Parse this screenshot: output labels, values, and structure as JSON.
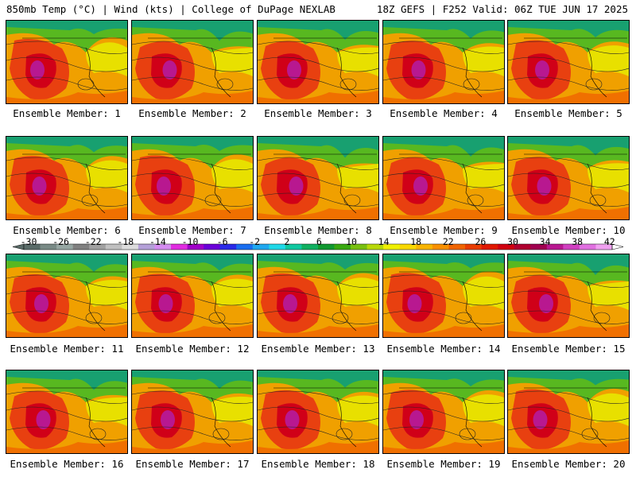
{
  "header": {
    "left": "850mb Temp (°C) | Wind (kts) | College of DuPage NEXLAB",
    "right": "18Z GEFS | F252 Valid: 06Z TUE JUN 17 2025"
  },
  "panels": [
    {
      "label": "Ensemble Member: 1"
    },
    {
      "label": "Ensemble Member: 2"
    },
    {
      "label": "Ensemble Member: 3"
    },
    {
      "label": "Ensemble Member: 4"
    },
    {
      "label": "Ensemble Member: 5"
    },
    {
      "label": "Ensemble Member: 6"
    },
    {
      "label": "Ensemble Member: 7"
    },
    {
      "label": "Ensemble Member: 8"
    },
    {
      "label": "Ensemble Member: 9"
    },
    {
      "label": "Ensemble Member: 10"
    },
    {
      "label": "Ensemble Member: 11"
    },
    {
      "label": "Ensemble Member: 12"
    },
    {
      "label": "Ensemble Member: 13"
    },
    {
      "label": "Ensemble Member: 14"
    },
    {
      "label": "Ensemble Member: 15"
    },
    {
      "label": "Ensemble Member: 16"
    },
    {
      "label": "Ensemble Member: 17"
    },
    {
      "label": "Ensemble Member: 18"
    },
    {
      "label": "Ensemble Member: 19"
    },
    {
      "label": "Ensemble Member: 20"
    }
  ],
  "colorbar": {
    "ticks": [
      "-30",
      "-26",
      "-22",
      "-18",
      "-14",
      "-10",
      "-6",
      "-2",
      "2",
      "6",
      "10",
      "14",
      "18",
      "22",
      "26",
      "30",
      "34",
      "38",
      "42"
    ],
    "colors": [
      "#5a6b68",
      "#798a86",
      "#96a6a2",
      "#808080",
      "#a0a0a0",
      "#c0c0c0",
      "#dcdcdc",
      "#b4a0d8",
      "#d48cf0",
      "#e02ce0",
      "#a000c8",
      "#6a00d8",
      "#2a2ae8",
      "#1a6ef0",
      "#20a8f0",
      "#20d8e8",
      "#10c8a0",
      "#10b060",
      "#109830",
      "#38a810",
      "#78c010",
      "#b8d808",
      "#f0f000",
      "#f8d800",
      "#f8b400",
      "#f89000",
      "#f06400",
      "#e83c00",
      "#e01800",
      "#d00010",
      "#b00030",
      "#a00050",
      "#b81890",
      "#d040c0",
      "#e070e0",
      "#f0a0f0"
    ]
  }
}
